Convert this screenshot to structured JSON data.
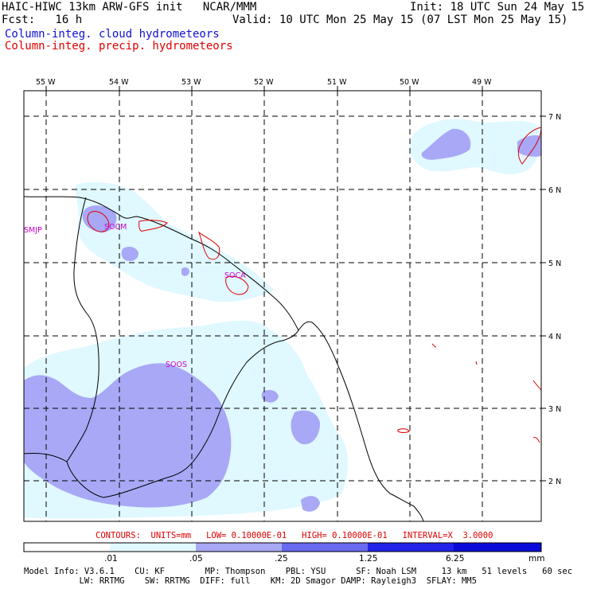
{
  "header": {
    "title": "HAIC-HIWC 13km ARW-GFS init   NCAR/MMM",
    "init": "Init: 18 UTC Sun 24 May 15",
    "fcst": "Fcst:   16 h",
    "valid": "Valid: 10 UTC Mon 25 May 15 (07 LST Mon 25 May 15)",
    "field1": "Column-integ. cloud hydrometeors",
    "field2": "Column-integ. precip. hydrometeors",
    "field1_color": "#1010d0",
    "field2_color": "#dd0000"
  },
  "map": {
    "lon_labels": [
      "55 W",
      "54 W",
      "53 W",
      "52 W",
      "51 W",
      "50 W",
      "49 W"
    ],
    "lat_labels": [
      "7 N",
      "6 N",
      "5 N",
      "4 N",
      "3 N",
      "2 N"
    ],
    "stations": [
      "SMJP",
      "SOCM",
      "SOCA",
      "SOOS"
    ],
    "station_color": "#cc00cc"
  },
  "contour_info": "CONTOURS:  UNITS=mm   LOW= 0.10000E-01   HIGH= 0.10000E-01   INTERVAL=X  3.0000",
  "colorbar": {
    "labels": [
      ".01",
      ".05",
      ".25",
      "1.25",
      "6.25",
      "mm"
    ],
    "colors": [
      "#ffffff",
      "#e0f8ff",
      "#a8a8f6",
      "#6a6af0",
      "#2222e8",
      "#0a0ad8"
    ]
  },
  "footer": {
    "line1": "Model Info: V3.6.1    CU: KF        MP: Thompson    PBL: YSU      SF: Noah LSM     13 km   51 levels   60 sec",
    "line2": "           LW: RRTMG    SW: RRTMG  DIFF: full    KM: 2D Smagor DAMP: Rayleigh3  SFLAY: MM5"
  }
}
